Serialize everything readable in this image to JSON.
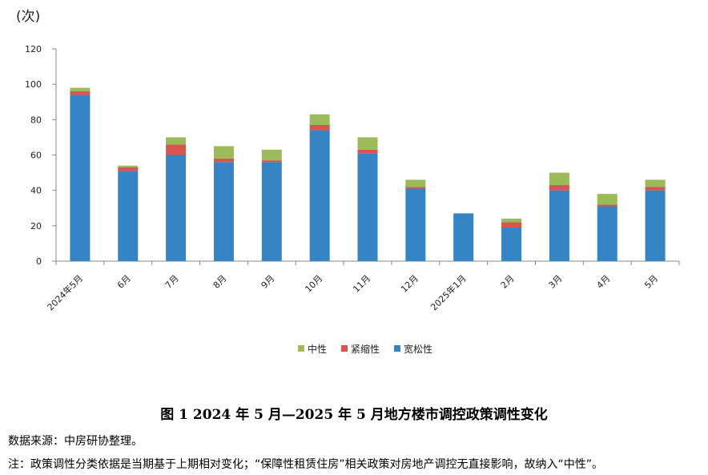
{
  "chart_data": {
    "type": "bar",
    "stacked": true,
    "unit_label": "(次)",
    "categories": [
      "2024年5月",
      "6月",
      "7月",
      "8月",
      "9月",
      "10月",
      "11月",
      "12月",
      "2025年1月",
      "2月",
      "3月",
      "4月",
      "5月"
    ],
    "series": [
      {
        "name": "宽松性",
        "color": "#3584C3",
        "values": [
          94,
          51,
          60,
          56,
          56,
          74,
          61,
          41,
          27,
          19,
          40,
          31,
          40
        ]
      },
      {
        "name": "紧缩性",
        "color": "#D9534F",
        "values": [
          2,
          2,
          6,
          2,
          1,
          3,
          2,
          1,
          0,
          3,
          3,
          1,
          2
        ]
      },
      {
        "name": "中性",
        "color": "#9BBB59",
        "values": [
          2,
          1,
          4,
          7,
          6,
          6,
          7,
          4,
          0,
          2,
          7,
          6,
          4
        ]
      }
    ],
    "legend_order": [
      "中性",
      "紧缩性",
      "宽松性"
    ],
    "ylim": [
      0,
      120
    ],
    "yticks": [
      0,
      20,
      40,
      60,
      80,
      100,
      120
    ],
    "xlabel": "",
    "ylabel": "",
    "legend_position": "bottom-center"
  },
  "caption": "图 1  2024 年 5 月—2025 年 5 月地方楼市调控政策调性变化",
  "source": "数据来源：中房研协整理。",
  "note": "注：政策调性分类依据是当期基于上期相对变化；“保障性租赁住房”相关政策对房地产调控无直接影响，故纳入“中性”。"
}
